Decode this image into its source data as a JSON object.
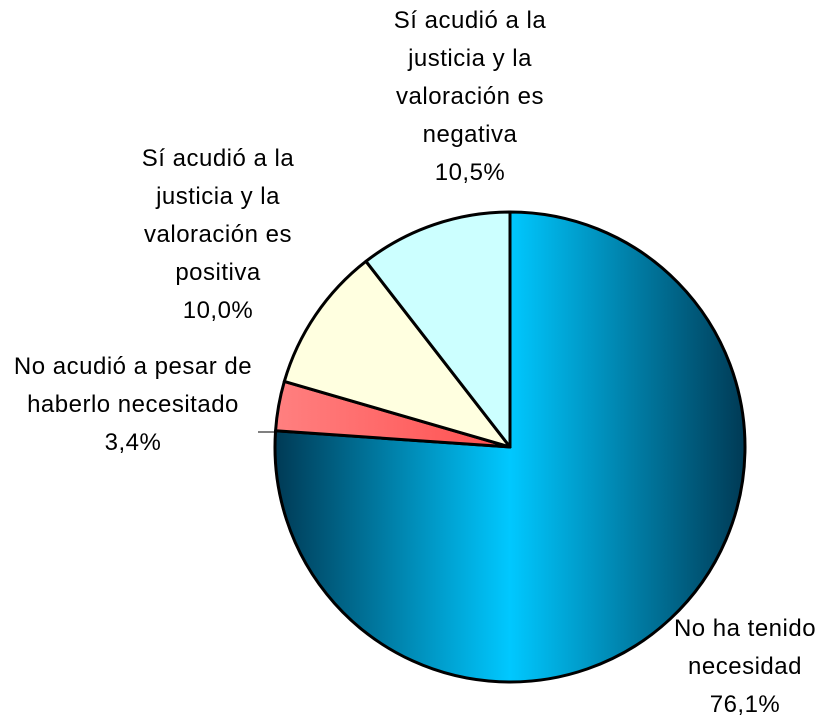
{
  "chart_data": {
    "type": "pie",
    "categories": [
      "No ha tenido necesidad",
      "No acudió a pesar de haberlo necesitado",
      "Sí acudió a la justicia y la valoración es positiva",
      "Sí acudió a la justicia y la valoración es negativa"
    ],
    "values": [
      76.1,
      3.4,
      10.0,
      10.5
    ],
    "value_labels": [
      "76,1%",
      "3,4%",
      "10,0%",
      "10,5%"
    ],
    "colors": [
      "#00c8ff",
      "#ff4f4f",
      "#ffffe0",
      "#ccffff"
    ]
  }
}
